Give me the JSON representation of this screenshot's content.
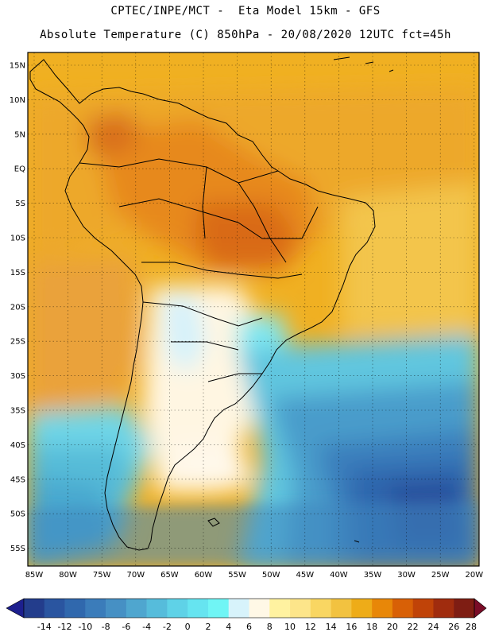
{
  "header": {
    "line1": "CPTEC/INPE/MCT -  Eta Model 15km - GFS",
    "line2": "Absolute Temperature (C) 850hPa - 20/08/2020 12UTC fct=45h"
  },
  "map": {
    "lat_labels": [
      "15N",
      "10N",
      "5N",
      "EQ",
      "5S",
      "10S",
      "15S",
      "20S",
      "25S",
      "30S",
      "35S",
      "40S",
      "45S",
      "50S",
      "55S"
    ],
    "lon_labels": [
      "85W",
      "80W",
      "75W",
      "70W",
      "65W",
      "60W",
      "55W",
      "50W",
      "45W",
      "40W",
      "35W",
      "30W",
      "25W",
      "20W"
    ]
  },
  "colorbar": {
    "levels": [
      "-14",
      "-12",
      "-10",
      "-8",
      "-6",
      "-4",
      "-2",
      "0",
      "2",
      "4",
      "6",
      "8",
      "10",
      "12",
      "14",
      "16",
      "18",
      "20",
      "22",
      "24",
      "26",
      "28"
    ],
    "colors": [
      "#233d8c",
      "#2a55a0",
      "#3068ad",
      "#3b7cba",
      "#4690c4",
      "#4fa6cf",
      "#56bcdb",
      "#5fd2e7",
      "#66e4f0",
      "#70f5f5",
      "#d7f3fb",
      "#fff8e6",
      "#fff2a0",
      "#fde58a",
      "#f9d662",
      "#f2c240",
      "#eeac18",
      "#e88708",
      "#d86006",
      "#c04308",
      "#a02c0e",
      "#7e1d13"
    ],
    "arrow_low_color": "#1d1f8e",
    "arrow_high_color": "#7a0c27"
  }
}
